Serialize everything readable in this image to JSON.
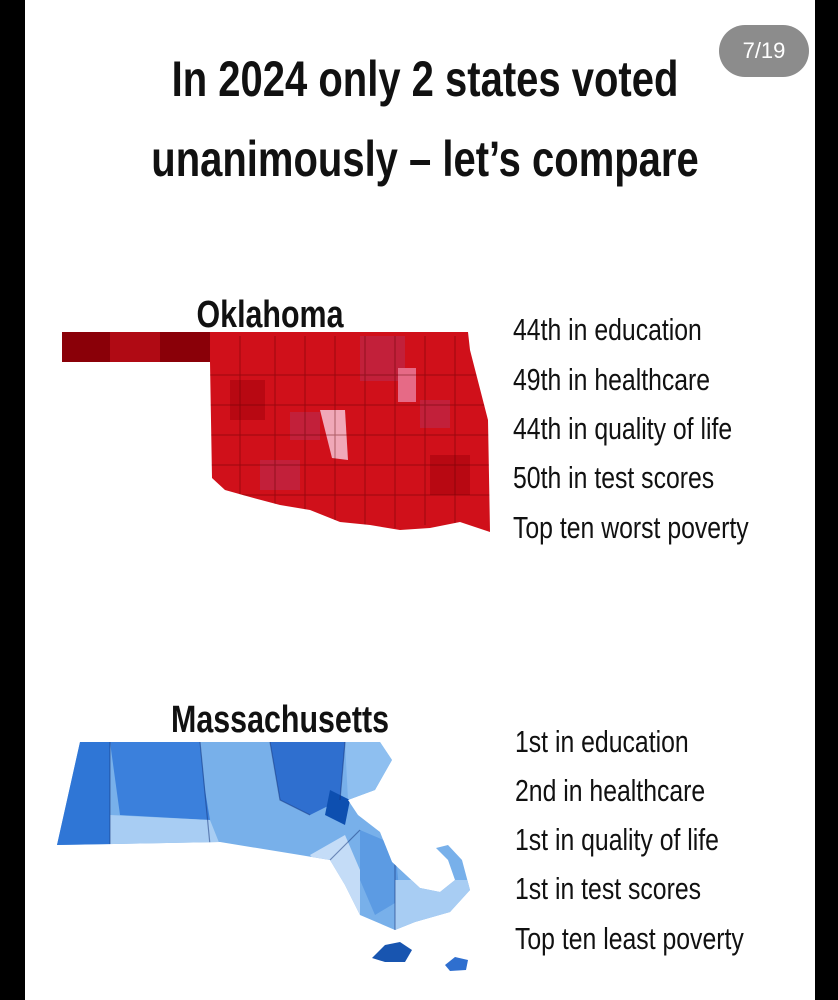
{
  "header": {
    "title_lines": [
      "In 2024 only 2 states voted",
      "unanimously – let’s compare"
    ],
    "page_indicator": "7/19"
  },
  "states": [
    {
      "name": "Oklahoma",
      "facts": [
        "44th in education",
        "49th in healthcare",
        "44th in quality of life",
        "50th in test scores",
        "Top ten worst poverty"
      ]
    },
    {
      "name": "Massachusetts",
      "facts": [
        "1st in education",
        "2nd in healthcare",
        "1st in quality of life",
        "1st in test scores",
        "Top ten least poverty"
      ]
    }
  ]
}
